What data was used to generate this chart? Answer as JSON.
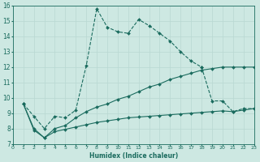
{
  "title": "",
  "xlabel": "Humidex (Indice chaleur)",
  "xlim": [
    0,
    23
  ],
  "ylim": [
    7,
    16
  ],
  "yticks": [
    7,
    8,
    9,
    10,
    11,
    12,
    13,
    14,
    15,
    16
  ],
  "xticks": [
    0,
    1,
    2,
    3,
    4,
    5,
    6,
    7,
    8,
    9,
    10,
    11,
    12,
    13,
    14,
    15,
    16,
    17,
    18,
    19,
    20,
    21,
    22,
    23
  ],
  "bg_color": "#cde8e2",
  "line_color": "#1a6b5e",
  "grid_color": "#b8d8d2",
  "line1_x": [
    1,
    2,
    3,
    4,
    5,
    6,
    7,
    8,
    9,
    10,
    11,
    12,
    13,
    14,
    15,
    16,
    17,
    18
  ],
  "line1_y": [
    9.6,
    8.8,
    8.0,
    8.8,
    8.7,
    9.2,
    12.1,
    15.8,
    14.6,
    14.3,
    14.2,
    15.1,
    14.7,
    14.2,
    13.7,
    13.0,
    12.4,
    12.0
  ],
  "line1_ls": "--",
  "line2_x": [
    1,
    2,
    3,
    4,
    5,
    6,
    7,
    8,
    9,
    10,
    11,
    12,
    13,
    14,
    15,
    16,
    17,
    18,
    19,
    20,
    21,
    22,
    23
  ],
  "line2_y": [
    9.6,
    8.0,
    7.4,
    8.0,
    8.2,
    8.7,
    9.1,
    9.4,
    9.6,
    9.9,
    10.1,
    10.4,
    10.7,
    10.9,
    11.2,
    11.4,
    11.6,
    11.8,
    11.9,
    12.0,
    12.0,
    12.0,
    12.0
  ],
  "line2_ls": "-",
  "line3_x": [
    1,
    2,
    3,
    4,
    5,
    6,
    7,
    8,
    9,
    10,
    11,
    12,
    13,
    14,
    15,
    16,
    17,
    18,
    19,
    20,
    21,
    22,
    23
  ],
  "line3_y": [
    9.6,
    7.9,
    7.4,
    7.8,
    7.95,
    8.1,
    8.25,
    8.4,
    8.5,
    8.6,
    8.7,
    8.75,
    8.8,
    8.85,
    8.9,
    8.95,
    9.0,
    9.05,
    9.1,
    9.15,
    9.1,
    9.2,
    9.3
  ],
  "line3_ls": "-",
  "line4_x": [
    18,
    19,
    20,
    21,
    22,
    23
  ],
  "line4_y": [
    12.0,
    9.8,
    9.8,
    9.1,
    9.3,
    9.3
  ],
  "line4_ls": "--"
}
